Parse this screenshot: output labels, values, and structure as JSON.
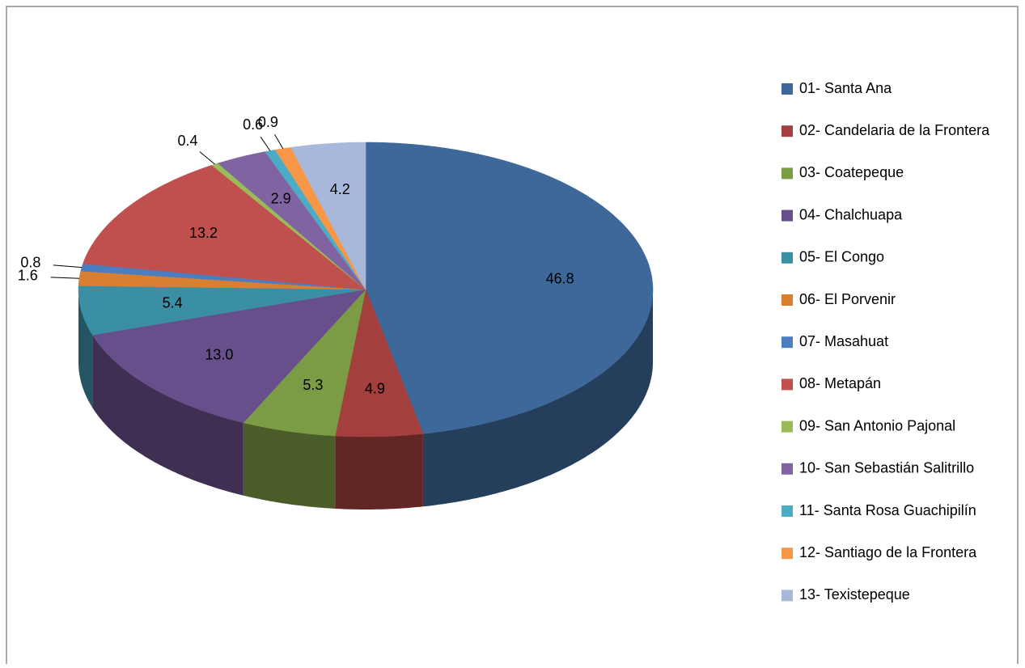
{
  "chart_data": {
    "type": "pie3d",
    "categories": [
      "01- Santa Ana",
      "02- Candelaria de la Frontera",
      "03- Coatepeque",
      "04- Chalchuapa",
      "05- El Congo",
      "06- El Porvenir",
      "07- Masahuat",
      "08- Metapán",
      "09- San Antonio Pajonal",
      "10- San Sebastián Salitrillo",
      "11- Santa Rosa Guachipilín",
      "12- Santiago de la Frontera",
      "13- Texistepeque"
    ],
    "values": [
      46.8,
      4.9,
      5.3,
      13.0,
      5.4,
      1.6,
      0.8,
      13.2,
      0.4,
      2.9,
      0.6,
      0.9,
      4.2
    ],
    "value_labels": [
      "46.8",
      "4.9",
      "5.3",
      "13.0",
      "5.4",
      "1.6",
      "0.8",
      "13.2",
      "0.4",
      "2.9",
      "0.6",
      "0.9",
      "4.2"
    ],
    "colors": [
      "#3d6899",
      "#a3403d",
      "#7b9b45",
      "#674f8b",
      "#3a8fa4",
      "#d87f31",
      "#4a7ec0",
      "#c0504d",
      "#9bbb59",
      "#8064a2",
      "#4bacc6",
      "#f79646",
      "#a8b8da"
    ],
    "legend": "right"
  }
}
